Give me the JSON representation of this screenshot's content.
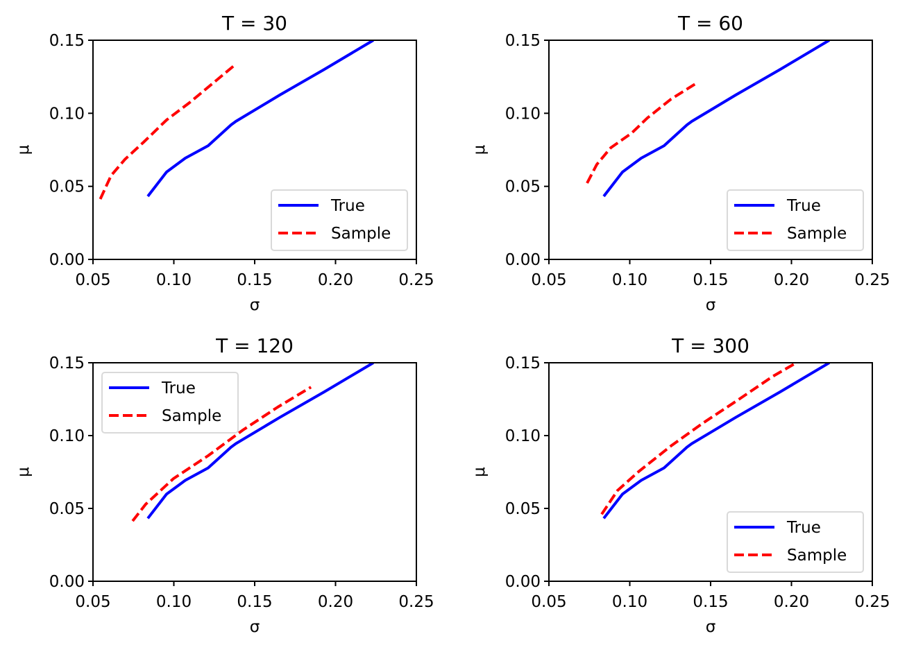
{
  "chart_data": [
    {
      "type": "line",
      "title": "T = 30",
      "xlabel": "σ",
      "ylabel": "μ",
      "xlim": [
        0.05,
        0.25
      ],
      "ylim": [
        0.0,
        0.15
      ],
      "xticks": [
        "0.05",
        "0.10",
        "0.15",
        "0.20",
        "0.25"
      ],
      "yticks": [
        "0.00",
        "0.05",
        "0.10",
        "0.15"
      ],
      "legend": "lower-right",
      "grid": false,
      "series": [
        {
          "name": "True",
          "style": "solid",
          "color": "#0000ff",
          "x": [
            0.0839,
            0.0955,
            0.1071,
            0.1212,
            0.1354,
            0.1384,
            0.1655,
            0.193,
            0.2234
          ],
          "y": [
            0.0432,
            0.0598,
            0.0693,
            0.0778,
            0.0921,
            0.0945,
            0.1125,
            0.13,
            0.15
          ]
        },
        {
          "name": "Sample",
          "style": "dashed",
          "color": "#ff0000",
          "x": [
            0.0545,
            0.0612,
            0.0697,
            0.0813,
            0.0955,
            0.1097,
            0.1242,
            0.137
          ],
          "y": [
            0.0413,
            0.0574,
            0.0684,
            0.0802,
            0.0954,
            0.1073,
            0.1206,
            0.1324
          ]
        }
      ]
    },
    {
      "type": "line",
      "title": "T = 60",
      "xlabel": "σ",
      "ylabel": "μ",
      "xlim": [
        0.05,
        0.25
      ],
      "ylim": [
        0.0,
        0.15
      ],
      "xticks": [
        "0.05",
        "0.10",
        "0.15",
        "0.20",
        "0.25"
      ],
      "yticks": [
        "0.00",
        "0.05",
        "0.10",
        "0.15"
      ],
      "legend": "lower-right",
      "grid": false,
      "series": [
        {
          "name": "True",
          "style": "solid",
          "color": "#0000ff",
          "x": [
            0.0839,
            0.0955,
            0.1071,
            0.1212,
            0.1354,
            0.1384,
            0.1655,
            0.193,
            0.2234
          ],
          "y": [
            0.0432,
            0.0598,
            0.0693,
            0.0778,
            0.0921,
            0.0945,
            0.1125,
            0.13,
            0.15
          ]
        },
        {
          "name": "Sample",
          "style": "dashed",
          "color": "#ff0000",
          "x": [
            0.0736,
            0.0796,
            0.0882,
            0.1011,
            0.1109,
            0.1255,
            0.1418
          ],
          "y": [
            0.0522,
            0.065,
            0.0764,
            0.0864,
            0.0968,
            0.1097,
            0.121
          ]
        }
      ]
    },
    {
      "type": "line",
      "title": "T = 120",
      "xlabel": "σ",
      "ylabel": "μ",
      "xlim": [
        0.05,
        0.25
      ],
      "ylim": [
        0.0,
        0.15
      ],
      "xticks": [
        "0.05",
        "0.10",
        "0.15",
        "0.20",
        "0.25"
      ],
      "yticks": [
        "0.00",
        "0.05",
        "0.10",
        "0.15"
      ],
      "legend": "upper-left",
      "grid": false,
      "series": [
        {
          "name": "True",
          "style": "solid",
          "color": "#0000ff",
          "x": [
            0.0839,
            0.0955,
            0.1071,
            0.1212,
            0.1354,
            0.1384,
            0.1655,
            0.193,
            0.2234
          ],
          "y": [
            0.0432,
            0.0598,
            0.0693,
            0.0778,
            0.0921,
            0.0945,
            0.1125,
            0.13,
            0.15
          ]
        },
        {
          "name": "Sample",
          "style": "dashed",
          "color": "#ff0000",
          "x": [
            0.0745,
            0.0826,
            0.0998,
            0.1212,
            0.1427,
            0.1642,
            0.1848
          ],
          "y": [
            0.0414,
            0.0529,
            0.0705,
            0.0862,
            0.1038,
            0.1195,
            0.1333
          ]
        }
      ]
    },
    {
      "type": "line",
      "title": "T = 300",
      "xlabel": "σ",
      "ylabel": "μ",
      "xlim": [
        0.05,
        0.25
      ],
      "ylim": [
        0.0,
        0.15
      ],
      "xticks": [
        "0.05",
        "0.10",
        "0.15",
        "0.20",
        "0.25"
      ],
      "yticks": [
        "0.00",
        "0.05",
        "0.10",
        "0.15"
      ],
      "legend": "lower-right",
      "grid": false,
      "series": [
        {
          "name": "True",
          "style": "solid",
          "color": "#0000ff",
          "x": [
            0.0839,
            0.0955,
            0.1071,
            0.1212,
            0.1354,
            0.1384,
            0.1655,
            0.193,
            0.2234
          ],
          "y": [
            0.0432,
            0.0598,
            0.0693,
            0.0778,
            0.0921,
            0.0945,
            0.1125,
            0.13,
            0.15
          ]
        },
        {
          "name": "Sample",
          "style": "dashed",
          "color": "#ff0000",
          "x": [
            0.0826,
            0.0925,
            0.1054,
            0.1255,
            0.1453,
            0.1667,
            0.1882,
            0.203
          ],
          "y": [
            0.046,
            0.0624,
            0.0752,
            0.0929,
            0.1086,
            0.1243,
            0.1405,
            0.15
          ]
        }
      ]
    }
  ]
}
